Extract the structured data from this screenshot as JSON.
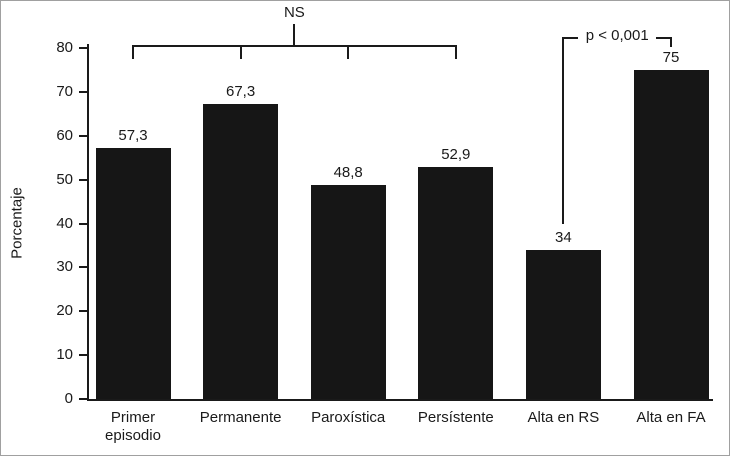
{
  "chart_data": {
    "type": "bar",
    "title": "",
    "xlabel": "",
    "ylabel": "Porcentaje",
    "categories": [
      "Primer\nepisodio",
      "Permanente",
      "Paroxística",
      "Persístente",
      "Alta en RS",
      "Alta en FA"
    ],
    "values": [
      57.3,
      67.3,
      48.8,
      52.9,
      34,
      75
    ],
    "value_labels": [
      "57,3",
      "67,3",
      "48,8",
      "52,9",
      "34",
      "75"
    ],
    "ylim": [
      0,
      80
    ],
    "yticks": [
      0,
      10,
      20,
      30,
      40,
      50,
      60,
      70,
      80
    ],
    "ytick_labels": [
      "0",
      "10",
      "20",
      "30",
      "40",
      "50",
      "60",
      "70",
      "80"
    ],
    "bar_color": "#161616",
    "axis_color": "#1a1a1a",
    "grid": false,
    "legend": false,
    "annotations": [
      {
        "type": "bracket",
        "label": "NS",
        "bars": [
          0,
          1,
          2,
          3
        ]
      },
      {
        "type": "bracket",
        "label": "p < 0,001",
        "bars": [
          4,
          5
        ]
      }
    ]
  }
}
